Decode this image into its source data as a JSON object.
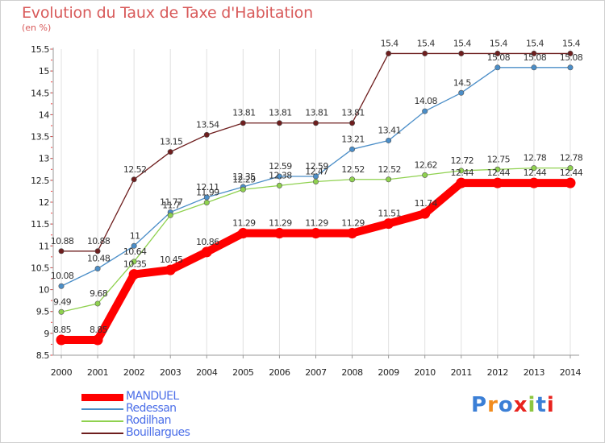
{
  "title": "Evolution du Taux de Taxe d'Habitation",
  "subtitle": "(en %)",
  "brand_logo": "Proxiti",
  "chart_data": {
    "type": "line",
    "x": [
      "2000",
      "2001",
      "2002",
      "2003",
      "2004",
      "2005",
      "2006",
      "2007",
      "2008",
      "2009",
      "2010",
      "2011",
      "2012",
      "2013",
      "2014"
    ],
    "ylim": [
      8.5,
      15.5
    ],
    "yticks": [
      "8.5",
      "9",
      "9.5",
      "10",
      "10.5",
      "11",
      "11.5",
      "12",
      "12.5",
      "13",
      "13.5",
      "14",
      "14.5",
      "15",
      "15.5"
    ],
    "grid": "vertical lines",
    "legend_position": "bottom-left",
    "series": [
      {
        "name": "MANDUEL",
        "color": "#ff0000",
        "values": [
          8.85,
          8.85,
          10.35,
          10.45,
          10.86,
          11.29,
          11.29,
          11.29,
          11.29,
          11.51,
          11.74,
          12.44,
          12.44,
          12.44,
          12.44
        ],
        "labels": [
          "8.85",
          "8.85",
          "10.35",
          "10.45",
          "10.86",
          "11.29",
          "11.29",
          "11.29",
          "11.29",
          "11.51",
          "11.74",
          "12.44",
          "12.44",
          "12.44",
          "12.44"
        ]
      },
      {
        "name": "Redessan",
        "color": "#4b8ec8",
        "values": [
          10.08,
          10.48,
          11,
          11.77,
          12.11,
          12.35,
          12.59,
          12.59,
          13.21,
          13.41,
          14.08,
          14.5,
          15.08,
          15.08,
          15.08
        ],
        "labels": [
          "10.08",
          "10.48",
          "11",
          "11.77",
          "12.11",
          "12.35",
          "12.59",
          "12.59",
          "13.21",
          "13.41",
          "14.08",
          "14.5",
          "15.08",
          "15.08",
          "15.08"
        ]
      },
      {
        "name": "Rodilhan",
        "color": "#8fd14f",
        "values": [
          9.49,
          9.68,
          10.64,
          11.7,
          11.99,
          12.29,
          12.38,
          12.47,
          12.52,
          12.52,
          12.62,
          12.72,
          12.75,
          12.78,
          12.78
        ],
        "labels": [
          "9.49",
          "9.68",
          "10.64",
          "11.7",
          "11.99",
          "12.29",
          "12.38",
          "12.47",
          "12.52",
          "12.52",
          "12.62",
          "12.72",
          "12.75",
          "12.78",
          "12.78"
        ]
      },
      {
        "name": "Bouillargues",
        "color": "#6e1e1e",
        "values": [
          10.88,
          10.88,
          12.52,
          13.15,
          13.54,
          13.81,
          13.81,
          13.81,
          13.81,
          15.4,
          15.4,
          15.4,
          15.4,
          15.4,
          15.4
        ],
        "labels": [
          "10.88",
          "10.88",
          "12.52",
          "13.15",
          "13.54",
          "13.81",
          "13.81",
          "13.81",
          "13.81",
          "15.4",
          "15.4",
          "15.4",
          "15.4",
          "15.4",
          "15.4"
        ]
      }
    ]
  }
}
